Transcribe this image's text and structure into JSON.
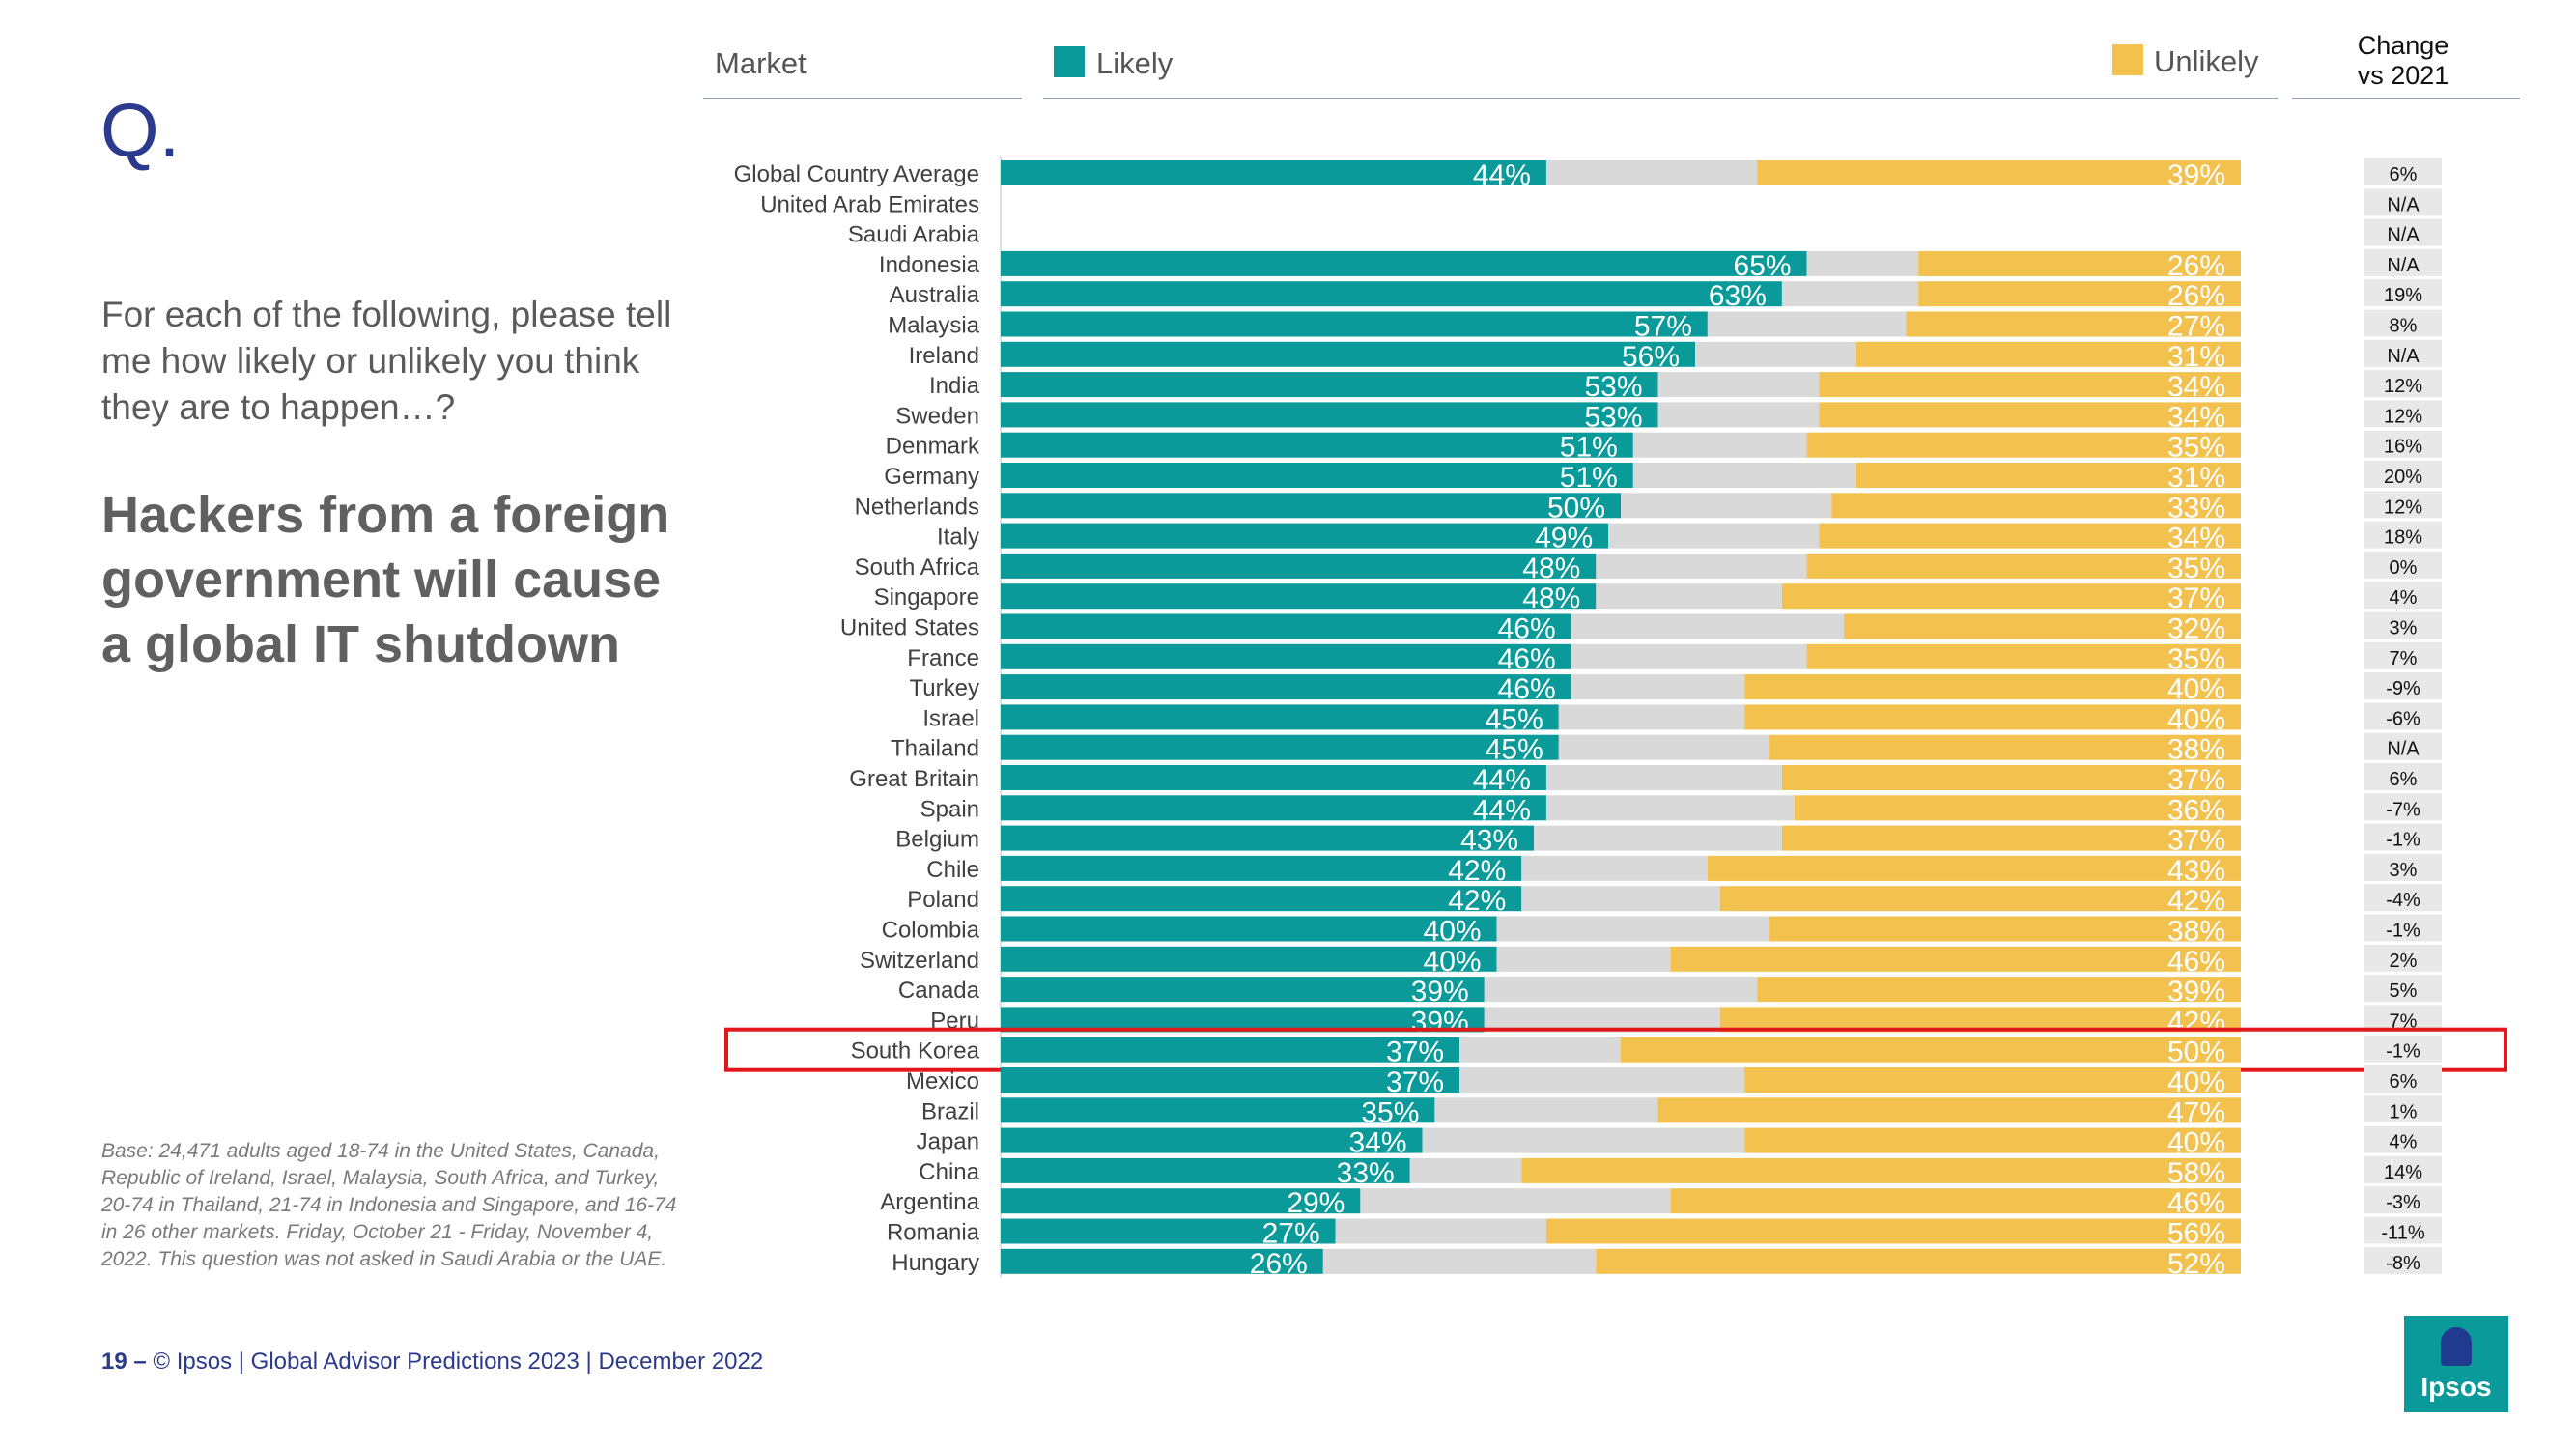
{
  "header": {
    "q_mark": "Q.",
    "market_label": "Market",
    "likely_label": "Likely",
    "unlikely_label": "Unlikely",
    "change_line1": "Change",
    "change_line2": "vs 2021"
  },
  "question": "For each of the following, please tell me how likely or unlikely you think they are to happen…?",
  "headline": "Hackers from a foreign government will cause a global IT shutdown",
  "base_note": "Base: 24,471 adults aged 18-74 in the United States, Canada, Republic of Ireland, Israel, Malaysia, South Africa, and Turkey, 20-74 in Thailand, 21-74 in Indonesia and Singapore, and 16-74 in 26 other markets. Friday, October 21 -  Friday, November 4, 2022. This question was not asked in Saudi Arabia or the UAE.",
  "footer": {
    "page_number": "19 –",
    "text": "© Ipsos | Global Advisor Predictions 2023 | December 2022"
  },
  "logo": {
    "text": "Ipsos"
  },
  "colors": {
    "likely": "#0b9a9a",
    "unlikely": "#f2c14e",
    "neutral": "#d9d9d9",
    "change_bg": "#e8e8e8",
    "highlight": "#e3161b",
    "title": "#2b3a8c"
  },
  "chart_data": {
    "type": "bar",
    "orientation": "horizontal-stacked",
    "highlighted_category": "South Korea",
    "xlim": [
      0,
      100
    ],
    "series_labels": [
      "Likely",
      "Unlikely"
    ],
    "rows": [
      {
        "market": "Global Country Average",
        "likely": 44,
        "unlikely": 39,
        "change": "6%"
      },
      {
        "market": "United Arab Emirates",
        "likely": null,
        "unlikely": null,
        "change": "N/A"
      },
      {
        "market": "Saudi Arabia",
        "likely": null,
        "unlikely": null,
        "change": "N/A"
      },
      {
        "market": "Indonesia",
        "likely": 65,
        "unlikely": 26,
        "change": "N/A"
      },
      {
        "market": "Australia",
        "likely": 63,
        "unlikely": 26,
        "change": "19%"
      },
      {
        "market": "Malaysia",
        "likely": 57,
        "unlikely": 27,
        "change": "8%"
      },
      {
        "market": "Ireland",
        "likely": 56,
        "unlikely": 31,
        "change": "N/A"
      },
      {
        "market": "India",
        "likely": 53,
        "unlikely": 34,
        "change": "12%"
      },
      {
        "market": "Sweden",
        "likely": 53,
        "unlikely": 34,
        "change": "12%"
      },
      {
        "market": "Denmark",
        "likely": 51,
        "unlikely": 35,
        "change": "16%"
      },
      {
        "market": "Germany",
        "likely": 51,
        "unlikely": 31,
        "change": "20%"
      },
      {
        "market": "Netherlands",
        "likely": 50,
        "unlikely": 33,
        "change": "12%"
      },
      {
        "market": "Italy",
        "likely": 49,
        "unlikely": 34,
        "change": "18%"
      },
      {
        "market": "South Africa",
        "likely": 48,
        "unlikely": 35,
        "change": "0%"
      },
      {
        "market": "Singapore",
        "likely": 48,
        "unlikely": 37,
        "change": "4%"
      },
      {
        "market": "United States",
        "likely": 46,
        "unlikely": 32,
        "change": "3%"
      },
      {
        "market": "France",
        "likely": 46,
        "unlikely": 35,
        "change": "7%"
      },
      {
        "market": "Turkey",
        "likely": 46,
        "unlikely": 40,
        "change": "-9%"
      },
      {
        "market": "Israel",
        "likely": 45,
        "unlikely": 40,
        "change": "-6%"
      },
      {
        "market": "Thailand",
        "likely": 45,
        "unlikely": 38,
        "change": "N/A"
      },
      {
        "market": "Great Britain",
        "likely": 44,
        "unlikely": 37,
        "change": "6%"
      },
      {
        "market": "Spain",
        "likely": 44,
        "unlikely": 36,
        "change": "-7%"
      },
      {
        "market": "Belgium",
        "likely": 43,
        "unlikely": 37,
        "change": "-1%"
      },
      {
        "market": "Chile",
        "likely": 42,
        "unlikely": 43,
        "change": "3%"
      },
      {
        "market": "Poland",
        "likely": 42,
        "unlikely": 42,
        "change": "-4%"
      },
      {
        "market": "Colombia",
        "likely": 40,
        "unlikely": 38,
        "change": "-1%"
      },
      {
        "market": "Switzerland",
        "likely": 40,
        "unlikely": 46,
        "change": "2%"
      },
      {
        "market": "Canada",
        "likely": 39,
        "unlikely": 39,
        "change": "5%"
      },
      {
        "market": "Peru",
        "likely": 39,
        "unlikely": 42,
        "change": "7%"
      },
      {
        "market": "South Korea",
        "likely": 37,
        "unlikely": 50,
        "change": "-1%"
      },
      {
        "market": "Mexico",
        "likely": 37,
        "unlikely": 40,
        "change": "6%"
      },
      {
        "market": "Brazil",
        "likely": 35,
        "unlikely": 47,
        "change": "1%"
      },
      {
        "market": "Japan",
        "likely": 34,
        "unlikely": 40,
        "change": "4%"
      },
      {
        "market": "China",
        "likely": 33,
        "unlikely": 58,
        "change": "14%"
      },
      {
        "market": "Argentina",
        "likely": 29,
        "unlikely": 46,
        "change": "-3%"
      },
      {
        "market": "Romania",
        "likely": 27,
        "unlikely": 56,
        "change": "-11%"
      },
      {
        "market": "Hungary",
        "likely": 26,
        "unlikely": 52,
        "change": "-8%"
      }
    ]
  }
}
